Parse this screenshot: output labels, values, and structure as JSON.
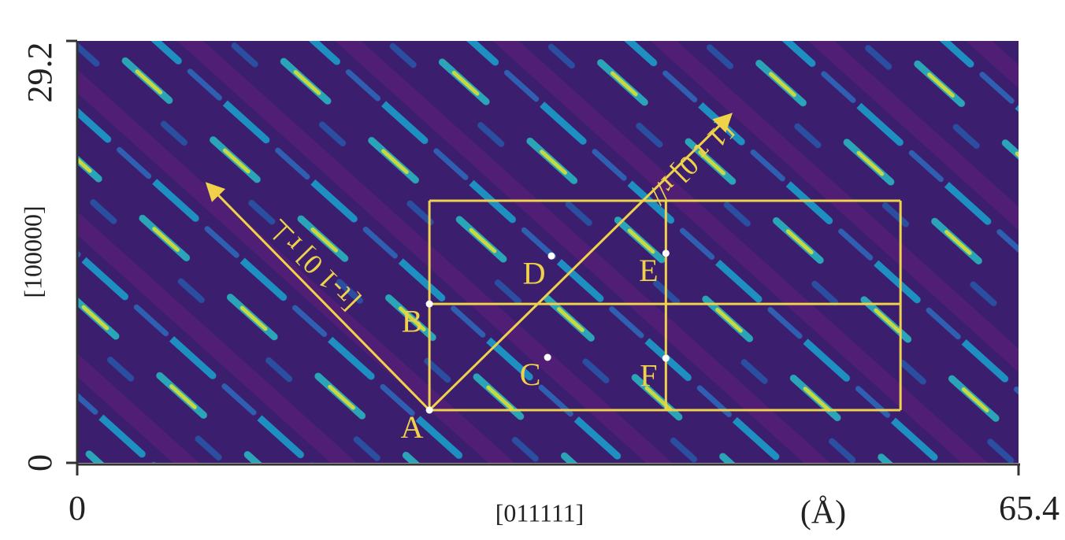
{
  "chart_data": {
    "type": "heatmap-annotated",
    "xlabel": "[011111]",
    "xunit": "(Å)",
    "ylabel": "[100000]",
    "xlim": [
      0,
      65.4
    ],
    "ylim": [
      0,
      29.2
    ],
    "xticks": [
      0,
      65.4
    ],
    "yticks": [
      0,
      29.2
    ],
    "box": {
      "x": [
        24.47,
        40.9,
        57.2
      ],
      "y": [
        3.65,
        11.0,
        18.14
      ],
      "color": "#f0d24a"
    },
    "points": [
      {
        "label": "A",
        "x": 24.47,
        "y": 3.65
      },
      {
        "label": "B",
        "x": 24.47,
        "y": 11.0
      },
      {
        "label": "C",
        "x": 32.68,
        "y": 7.3
      },
      {
        "label": "D",
        "x": 32.95,
        "y": 14.32
      },
      {
        "label": "E",
        "x": 40.9,
        "y": 14.5
      },
      {
        "label": "F",
        "x": 40.9,
        "y": 7.24
      }
    ],
    "arrows": [
      {
        "label": "[τ-1 0] r⊥",
        "x": [
          24.47,
          9.14
        ],
        "y": [
          3.65,
          19.2
        ]
      },
      {
        "label": "[1 τ 0] r//",
        "x": [
          24.47,
          45.3
        ],
        "y": [
          3.65,
          24.0
        ]
      }
    ]
  }
}
